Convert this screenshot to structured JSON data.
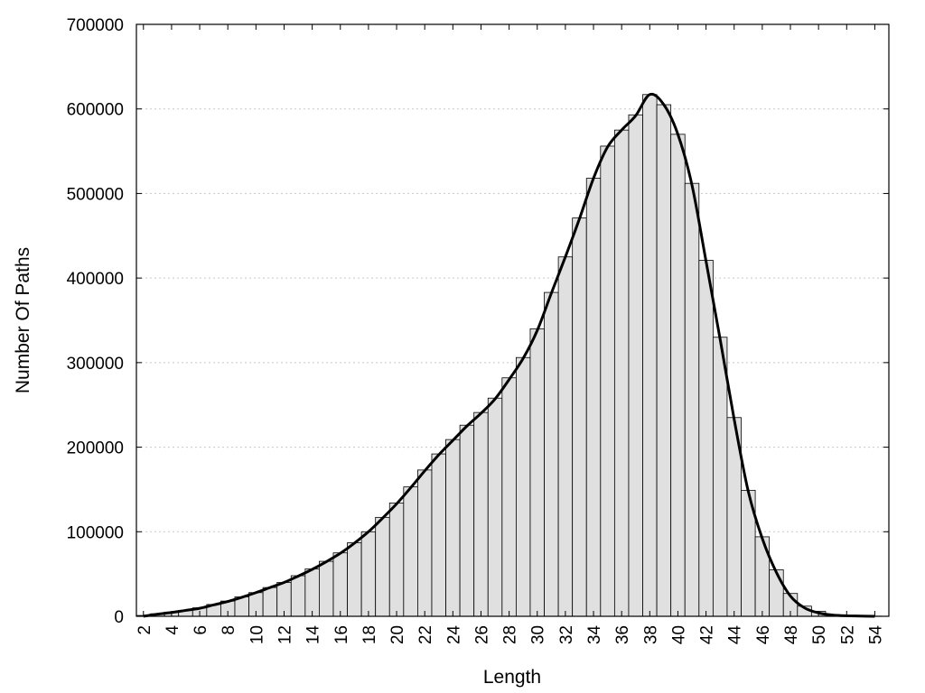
{
  "chart_data": {
    "type": "bar",
    "title": "",
    "xlabel": "Length",
    "ylabel": "Number Of Paths",
    "x": [
      2,
      3,
      4,
      5,
      6,
      7,
      8,
      9,
      10,
      11,
      12,
      13,
      14,
      15,
      16,
      17,
      18,
      19,
      20,
      21,
      22,
      23,
      24,
      25,
      26,
      27,
      28,
      29,
      30,
      31,
      32,
      33,
      34,
      35,
      36,
      37,
      38,
      39,
      40,
      41,
      42,
      43,
      44,
      45,
      46,
      47,
      48,
      49,
      50,
      51,
      52,
      53,
      54
    ],
    "values": [
      1000,
      3000,
      5000,
      7000,
      10000,
      14000,
      18000,
      23000,
      28000,
      34000,
      40000,
      48000,
      56000,
      65000,
      75000,
      87000,
      100000,
      117000,
      134000,
      153000,
      173000,
      192000,
      209000,
      226000,
      241000,
      258000,
      282000,
      306000,
      340000,
      383000,
      425000,
      471000,
      518000,
      556000,
      575000,
      593000,
      617000,
      605000,
      570000,
      512000,
      421000,
      330000,
      235000,
      149000,
      94000,
      55000,
      27000,
      12000,
      6000,
      2000,
      1000,
      500,
      200
    ],
    "curve": [
      [
        2,
        0
      ],
      [
        3,
        2500
      ],
      [
        4,
        4500
      ],
      [
        5,
        7000
      ],
      [
        6,
        9500
      ],
      [
        7,
        13500
      ],
      [
        8,
        17500
      ],
      [
        9,
        22500
      ],
      [
        10,
        28000
      ],
      [
        11,
        34000
      ],
      [
        12,
        40000
      ],
      [
        13,
        47500
      ],
      [
        14,
        55500
      ],
      [
        15,
        64500
      ],
      [
        16,
        74500
      ],
      [
        17,
        86500
      ],
      [
        18,
        100000
      ],
      [
        19,
        116000
      ],
      [
        20,
        133000
      ],
      [
        21,
        152000
      ],
      [
        22,
        172000
      ],
      [
        23,
        191000
      ],
      [
        24,
        208000
      ],
      [
        25,
        225000
      ],
      [
        26,
        240000
      ],
      [
        27,
        257000
      ],
      [
        28,
        280000
      ],
      [
        29,
        305000
      ],
      [
        30,
        338000
      ],
      [
        31,
        382000
      ],
      [
        32,
        425000
      ],
      [
        33,
        470000
      ],
      [
        34,
        518000
      ],
      [
        35,
        555000
      ],
      [
        36,
        575000
      ],
      [
        37,
        592000
      ],
      [
        38,
        617000
      ],
      [
        39,
        605000
      ],
      [
        40,
        570000
      ],
      [
        41,
        510000
      ],
      [
        42,
        420000
      ],
      [
        43,
        328000
      ],
      [
        44,
        233000
      ],
      [
        45,
        148000
      ],
      [
        46,
        92000
      ],
      [
        47,
        52000
      ],
      [
        48,
        24000
      ],
      [
        49,
        10000
      ],
      [
        50,
        4000
      ],
      [
        51,
        1500
      ],
      [
        52,
        600
      ],
      [
        53,
        300
      ],
      [
        54,
        0
      ]
    ],
    "xticks": [
      2,
      4,
      6,
      8,
      10,
      12,
      14,
      16,
      18,
      20,
      22,
      24,
      26,
      28,
      30,
      32,
      34,
      36,
      38,
      40,
      42,
      44,
      46,
      48,
      50,
      52,
      54
    ],
    "yticks": [
      0,
      100000,
      200000,
      300000,
      400000,
      500000,
      600000,
      700000
    ],
    "xlim": [
      1.5,
      55
    ],
    "ylim": [
      0,
      700000
    ],
    "grid": "horizontal dotted",
    "colors": {
      "bar_fill": "#e0e0e0",
      "bar_stroke": "#000000",
      "curve": "#000000",
      "grid": "#c8c8c8"
    }
  }
}
